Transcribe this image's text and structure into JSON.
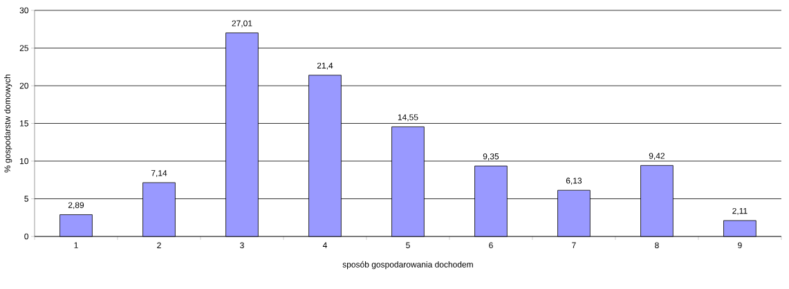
{
  "chart_data": {
    "type": "bar",
    "xlabel": "sposób gospodarowania dochodem",
    "ylabel": "% gospodarstw domowych",
    "categories": [
      "1",
      "2",
      "3",
      "4",
      "5",
      "6",
      "7",
      "8",
      "9"
    ],
    "values": [
      2.89,
      7.14,
      27.01,
      21.4,
      14.55,
      9.35,
      6.13,
      9.42,
      2.11
    ],
    "value_labels": [
      "2,89",
      "7,14",
      "27,01",
      "21,4",
      "14,55",
      "9,35",
      "6,13",
      "9,42",
      "2,11"
    ],
    "color": "#9999ff",
    "ylim": [
      0,
      30
    ],
    "yticks": [
      0,
      5,
      10,
      15,
      20,
      25,
      30
    ],
    "grid": "y"
  }
}
